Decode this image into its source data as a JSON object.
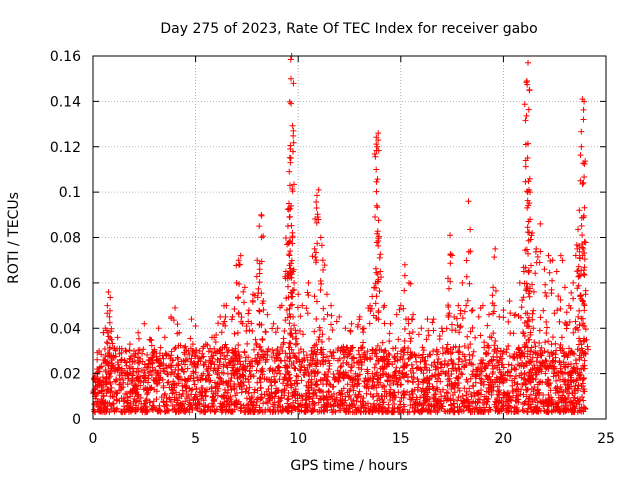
{
  "chart_data": {
    "type": "scatter",
    "title": "Day 275 of 2023, Rate Of TEC Index for receiver gabo",
    "xlabel": "GPS time / hours",
    "ylabel": "ROTI / TECUs",
    "xlim": [
      0,
      25
    ],
    "ylim": [
      0,
      0.16
    ],
    "x_ticks": [
      0,
      5,
      10,
      15,
      20,
      25
    ],
    "x_tick_labels": [
      "0",
      "5",
      "10",
      "15",
      "20",
      "25"
    ],
    "y_ticks": [
      0,
      0.02,
      0.04,
      0.06,
      0.08,
      0.1,
      0.12,
      0.14,
      0.16
    ],
    "y_tick_labels": [
      "0",
      "0.02",
      "0.04",
      "0.06",
      "0.08",
      "0.1",
      "0.12",
      "0.14",
      "0.16"
    ],
    "grid": true,
    "marker": "+",
    "marker_color": "#ff0000",
    "series": [
      {
        "points": [
          [
            0.1,
            0.01
          ],
          [
            0.2,
            0.022
          ],
          [
            0.3,
            0.03
          ],
          [
            0.4,
            0.015
          ],
          [
            0.5,
            0.026
          ],
          [
            0.6,
            0.04
          ],
          [
            0.7,
            0.05
          ],
          [
            0.75,
            0.056
          ],
          [
            0.8,
            0.045
          ],
          [
            0.9,
            0.035
          ],
          [
            1.0,
            0.028
          ],
          [
            1.2,
            0.036
          ],
          [
            1.4,
            0.031
          ],
          [
            1.6,
            0.025
          ],
          [
            1.8,
            0.033
          ],
          [
            2.0,
            0.03
          ],
          [
            2.2,
            0.038
          ],
          [
            2.5,
            0.042
          ],
          [
            2.8,
            0.035
          ],
          [
            3.0,
            0.03
          ],
          [
            3.2,
            0.04
          ],
          [
            3.5,
            0.036
          ],
          [
            3.8,
            0.045
          ],
          [
            4.0,
            0.049
          ],
          [
            4.2,
            0.038
          ],
          [
            4.5,
            0.032
          ],
          [
            4.8,
            0.044
          ],
          [
            5.0,
            0.041
          ],
          [
            5.2,
            0.03
          ],
          [
            5.5,
            0.033
          ],
          [
            5.8,
            0.036
          ],
          [
            6.0,
            0.037
          ],
          [
            6.2,
            0.045
          ],
          [
            6.4,
            0.043
          ],
          [
            6.5,
            0.05
          ],
          [
            6.8,
            0.045
          ],
          [
            7.0,
            0.06
          ],
          [
            7.1,
            0.07
          ],
          [
            7.2,
            0.072
          ],
          [
            7.4,
            0.058
          ],
          [
            7.6,
            0.048
          ],
          [
            7.8,
            0.055
          ],
          [
            8.0,
            0.07
          ],
          [
            8.1,
            0.085
          ],
          [
            8.2,
            0.09
          ],
          [
            8.3,
            0.052
          ],
          [
            8.5,
            0.046
          ],
          [
            8.8,
            0.042
          ],
          [
            9.0,
            0.04
          ],
          [
            9.2,
            0.05
          ],
          [
            9.4,
            0.065
          ],
          [
            9.5,
            0.085
          ],
          [
            9.55,
            0.095
          ],
          [
            9.6,
            0.103
          ],
          [
            9.62,
            0.113
          ],
          [
            9.65,
            0.15
          ],
          [
            9.68,
            0.16
          ],
          [
            9.8,
            0.06
          ],
          [
            10.0,
            0.055
          ],
          [
            10.2,
            0.05
          ],
          [
            10.5,
            0.06
          ],
          [
            10.8,
            0.075
          ],
          [
            10.9,
            0.093
          ],
          [
            11.0,
            0.101
          ],
          [
            11.1,
            0.08
          ],
          [
            11.2,
            0.07
          ],
          [
            11.4,
            0.055
          ],
          [
            11.6,
            0.05
          ],
          [
            12.0,
            0.045
          ],
          [
            12.3,
            0.04
          ],
          [
            12.6,
            0.042
          ],
          [
            13.0,
            0.045
          ],
          [
            13.2,
            0.04
          ],
          [
            13.5,
            0.05
          ],
          [
            13.7,
            0.058
          ],
          [
            13.8,
            0.11
          ],
          [
            13.85,
            0.12
          ],
          [
            13.9,
            0.126
          ],
          [
            14.0,
            0.065
          ],
          [
            14.2,
            0.05
          ],
          [
            14.5,
            0.042
          ],
          [
            14.8,
            0.046
          ],
          [
            15.0,
            0.05
          ],
          [
            15.2,
            0.068
          ],
          [
            15.4,
            0.06
          ],
          [
            15.6,
            0.046
          ],
          [
            16.0,
            0.04
          ],
          [
            16.3,
            0.044
          ],
          [
            16.6,
            0.044
          ],
          [
            17.0,
            0.04
          ],
          [
            17.3,
            0.062
          ],
          [
            17.4,
            0.081
          ],
          [
            17.6,
            0.045
          ],
          [
            17.8,
            0.05
          ],
          [
            18.0,
            0.06
          ],
          [
            18.3,
            0.096
          ],
          [
            18.5,
            0.048
          ],
          [
            18.8,
            0.045
          ],
          [
            19.0,
            0.05
          ],
          [
            19.3,
            0.046
          ],
          [
            19.5,
            0.058
          ],
          [
            19.6,
            0.075
          ],
          [
            19.8,
            0.045
          ],
          [
            20.0,
            0.048
          ],
          [
            20.3,
            0.052
          ],
          [
            20.6,
            0.046
          ],
          [
            20.8,
            0.06
          ],
          [
            21.0,
            0.065
          ],
          [
            21.1,
            0.121
          ],
          [
            21.15,
            0.149
          ],
          [
            21.2,
            0.157
          ],
          [
            21.25,
            0.101
          ],
          [
            21.3,
            0.088
          ],
          [
            21.4,
            0.082
          ],
          [
            21.6,
            0.075
          ],
          [
            21.8,
            0.086
          ],
          [
            22.0,
            0.066
          ],
          [
            22.2,
            0.072
          ],
          [
            22.4,
            0.07
          ],
          [
            22.6,
            0.065
          ],
          [
            22.8,
            0.072
          ],
          [
            23.0,
            0.058
          ],
          [
            23.2,
            0.05
          ],
          [
            23.4,
            0.06
          ],
          [
            23.6,
            0.075
          ],
          [
            23.7,
            0.092
          ],
          [
            23.75,
            0.105
          ],
          [
            23.8,
            0.12
          ],
          [
            23.85,
            0.141
          ],
          [
            23.9,
            0.132
          ],
          [
            23.95,
            0.078
          ],
          [
            24.0,
            0.055
          ]
        ],
        "noise_floor": 0.003,
        "noise_ceiling": 0.025
      }
    ]
  }
}
